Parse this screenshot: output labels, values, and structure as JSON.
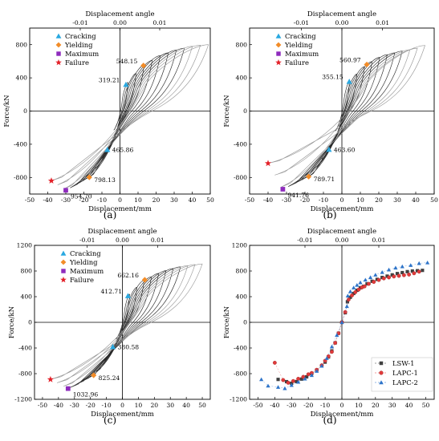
{
  "chart_data": [
    {
      "type": "line",
      "caption": "(a)",
      "xlabel": "Displacement/mm",
      "ylabel": "Force/kN",
      "top_label": "Displacement angle",
      "xlim": [
        -50,
        50
      ],
      "ylim": [
        -1000,
        1000
      ],
      "xticks": [
        -50,
        -40,
        -30,
        -20,
        -10,
        0,
        10,
        20,
        30,
        40,
        50
      ],
      "yticks": [
        -800,
        -400,
        0,
        400,
        800
      ],
      "top_ticks": [
        "-0.01",
        "0.00",
        "0.01"
      ],
      "legend": [
        "Cracking",
        "Yielding",
        "Maximum",
        "Failure"
      ],
      "legend_colors": [
        "#29a8e0",
        "#f28c28",
        "#8e2bbd",
        "#e32028"
      ],
      "envelope_pos": [
        [
          0,
          0
        ],
        [
          3.3,
          319.21
        ],
        [
          13,
          548.15
        ],
        [
          22,
          665
        ],
        [
          32,
          740
        ],
        [
          42,
          790
        ],
        [
          49,
          800
        ]
      ],
      "envelope_neg": [
        [
          0,
          0
        ],
        [
          -7,
          -465.86
        ],
        [
          -17,
          -798.13
        ],
        [
          -30,
          -954.7
        ],
        [
          -38,
          -840
        ]
      ],
      "key_points": [
        {
          "kind": "Cracking",
          "x": 3.3,
          "y": 319.21,
          "label": "319.21"
        },
        {
          "kind": "Cracking",
          "x": -7,
          "y": -465.86,
          "label": "465.86"
        },
        {
          "kind": "Yielding",
          "x": 13,
          "y": 548.15,
          "label": "548.15"
        },
        {
          "kind": "Yielding",
          "x": -17,
          "y": -798.13,
          "label": "798.13"
        },
        {
          "kind": "Maximum",
          "x": -30,
          "y": -954.7,
          "label": "954.70"
        },
        {
          "kind": "Failure",
          "x": -38,
          "y": -840,
          "label": ""
        }
      ]
    },
    {
      "type": "line",
      "caption": "(b)",
      "xlabel": "Displacement/mm",
      "ylabel": "Force/kN",
      "top_label": "Displacement angle",
      "xlim": [
        -50,
        50
      ],
      "ylim": [
        -1000,
        1000
      ],
      "xticks": [
        -50,
        -40,
        -30,
        -20,
        -10,
        0,
        10,
        20,
        30,
        40,
        50
      ],
      "yticks": [
        -800,
        -400,
        0,
        400,
        800
      ],
      "top_ticks": [
        "-0.01",
        "0.00",
        "0.01"
      ],
      "legend": [
        "Cracking",
        "Yielding",
        "Maximum",
        "Failure"
      ],
      "legend_colors": [
        "#29a8e0",
        "#f28c28",
        "#8e2bbd",
        "#e32028"
      ],
      "envelope_pos": [
        [
          0,
          0
        ],
        [
          4,
          355.15
        ],
        [
          13.5,
          560.97
        ],
        [
          22,
          665
        ],
        [
          32,
          720
        ],
        [
          40,
          750
        ],
        [
          45,
          790
        ]
      ],
      "envelope_neg": [
        [
          0,
          0
        ],
        [
          -7,
          -463.6
        ],
        [
          -18,
          -789.71
        ],
        [
          -32,
          -941.76
        ],
        [
          -40,
          -630
        ]
      ],
      "key_points": [
        {
          "kind": "Cracking",
          "x": 4,
          "y": 355.15,
          "label": "355.15"
        },
        {
          "kind": "Cracking",
          "x": -7,
          "y": -463.6,
          "label": "463.60"
        },
        {
          "kind": "Yielding",
          "x": 13.5,
          "y": 560.97,
          "label": "560.97"
        },
        {
          "kind": "Yielding",
          "x": -18,
          "y": -789.71,
          "label": "789.71"
        },
        {
          "kind": "Maximum",
          "x": -32,
          "y": -941.76,
          "label": "941.76"
        },
        {
          "kind": "Failure",
          "x": -40,
          "y": -630,
          "label": ""
        }
      ]
    },
    {
      "type": "line",
      "caption": "(c)",
      "xlabel": "Displacement/mm",
      "ylabel": "Force/kN",
      "top_label": "Displacement angle",
      "xlim": [
        -55,
        55
      ],
      "ylim": [
        -1200,
        1200
      ],
      "xticks": [
        -50,
        -40,
        -30,
        -20,
        -10,
        0,
        10,
        20,
        30,
        40,
        50
      ],
      "yticks": [
        -1200,
        -800,
        -400,
        0,
        400,
        800,
        1200
      ],
      "top_ticks": [
        "-0.01",
        "0.00",
        "0.01"
      ],
      "legend": [
        "Cracking",
        "Yielding",
        "Maximum",
        "Failure"
      ],
      "legend_colors": [
        "#29a8e0",
        "#f28c28",
        "#8e2bbd",
        "#e32028"
      ],
      "envelope_pos": [
        [
          0,
          0
        ],
        [
          3.5,
          412.71
        ],
        [
          14,
          662.16
        ],
        [
          25,
          790
        ],
        [
          35,
          860
        ],
        [
          45,
          900
        ],
        [
          50,
          910
        ]
      ],
      "envelope_neg": [
        [
          0,
          0
        ],
        [
          -6,
          -380.58
        ],
        [
          -18,
          -825.24
        ],
        [
          -34,
          -1032.96
        ],
        [
          -45,
          -890
        ]
      ],
      "key_points": [
        {
          "kind": "Cracking",
          "x": 3.5,
          "y": 412.71,
          "label": "412.71"
        },
        {
          "kind": "Cracking",
          "x": -6,
          "y": -380.58,
          "label": "380.58"
        },
        {
          "kind": "Yielding",
          "x": 14,
          "y": 662.16,
          "label": "662.16"
        },
        {
          "kind": "Yielding",
          "x": -18,
          "y": -825.24,
          "label": "825.24"
        },
        {
          "kind": "Maximum",
          "x": -34,
          "y": -1032.96,
          "label": "1032.96"
        },
        {
          "kind": "Failure",
          "x": -45,
          "y": -890,
          "label": ""
        }
      ]
    },
    {
      "type": "scatter",
      "caption": "(d)",
      "xlabel": "Displacement/mm",
      "ylabel": "Force/kN",
      "top_label": "Displacement angle",
      "xlim": [
        -55,
        55
      ],
      "ylim": [
        -1200,
        1200
      ],
      "xticks": [
        -50,
        -40,
        -30,
        -20,
        -10,
        0,
        10,
        20,
        30,
        40,
        50
      ],
      "yticks": [
        -1200,
        -800,
        -400,
        0,
        400,
        800,
        1200
      ],
      "top_ticks": [
        "-0.01",
        "0.00",
        "0.01"
      ],
      "series": [
        {
          "name": "LSW-1",
          "color": "#404040",
          "marker": "square",
          "points": [
            [
              -38,
              -890
            ],
            [
              -33,
              -925
            ],
            [
              -30,
              -950
            ],
            [
              -27,
              -925
            ],
            [
              -24,
              -885
            ],
            [
              -21,
              -850
            ],
            [
              -18,
              -800
            ],
            [
              -15,
              -745
            ],
            [
              -12,
              -680
            ],
            [
              -10,
              -620
            ],
            [
              -8,
              -540
            ],
            [
              -6,
              -445
            ],
            [
              -4,
              -320
            ],
            [
              -2,
              -170
            ],
            [
              0,
              0
            ],
            [
              2,
              150
            ],
            [
              3.3,
              320
            ],
            [
              5,
              390
            ],
            [
              7,
              450
            ],
            [
              9,
              500
            ],
            [
              11,
              540
            ],
            [
              13,
              560
            ],
            [
              15,
              600
            ],
            [
              18,
              640
            ],
            [
              21,
              670
            ],
            [
              24,
              700
            ],
            [
              27,
              720
            ],
            [
              30,
              740
            ],
            [
              33,
              760
            ],
            [
              36,
              775
            ],
            [
              39,
              790
            ],
            [
              42,
              800
            ],
            [
              45,
              805
            ],
            [
              48,
              810
            ]
          ]
        },
        {
          "name": "LAPC-1",
          "color": "#e03a3a",
          "marker": "circle",
          "points": [
            [
              -40,
              -630
            ],
            [
              -35,
              -900
            ],
            [
              -32,
              -942
            ],
            [
              -29,
              -915
            ],
            [
              -26,
              -880
            ],
            [
              -23,
              -850
            ],
            [
              -20,
              -810
            ],
            [
              -18,
              -790
            ],
            [
              -15,
              -740
            ],
            [
              -12,
              -670
            ],
            [
              -10,
              -600
            ],
            [
              -8,
              -530
            ],
            [
              -6,
              -460
            ],
            [
              -4,
              -320
            ],
            [
              -2,
              -170
            ],
            [
              0,
              0
            ],
            [
              2,
              160
            ],
            [
              4,
              355
            ],
            [
              6,
              420
            ],
            [
              8,
              470
            ],
            [
              10,
              510
            ],
            [
              12,
              545
            ],
            [
              13.5,
              561
            ],
            [
              16,
              600
            ],
            [
              19,
              630
            ],
            [
              22,
              660
            ],
            [
              25,
              685
            ],
            [
              28,
              700
            ],
            [
              31,
              715
            ],
            [
              34,
              725
            ],
            [
              37,
              735
            ],
            [
              40,
              745
            ],
            [
              43,
              765
            ],
            [
              46,
              790
            ]
          ]
        },
        {
          "name": "LAPC-2",
          "color": "#2e74c9",
          "marker": "triangle",
          "points": [
            [
              -48,
              -890
            ],
            [
              -44,
              -990
            ],
            [
              -38,
              -1010
            ],
            [
              -34,
              -1030
            ],
            [
              -30,
              -980
            ],
            [
              -26,
              -930
            ],
            [
              -22,
              -880
            ],
            [
              -18,
              -825
            ],
            [
              -15,
              -760
            ],
            [
              -12,
              -680
            ],
            [
              -9,
              -560
            ],
            [
              -6,
              -380
            ],
            [
              -3,
              -200
            ],
            [
              0,
              0
            ],
            [
              3,
              250
            ],
            [
              3.5,
              413
            ],
            [
              5,
              480
            ],
            [
              7,
              540
            ],
            [
              9,
              580
            ],
            [
              11,
              620
            ],
            [
              14,
              662
            ],
            [
              17,
              700
            ],
            [
              20,
              740
            ],
            [
              24,
              780
            ],
            [
              28,
              820
            ],
            [
              32,
              850
            ],
            [
              36,
              870
            ],
            [
              41,
              890
            ],
            [
              46,
              920
            ],
            [
              51,
              930
            ]
          ]
        }
      ],
      "legend": [
        "LSW-1",
        "LAPC-1",
        "LAPC-2"
      ],
      "legend_placement": "bottom-right"
    }
  ]
}
